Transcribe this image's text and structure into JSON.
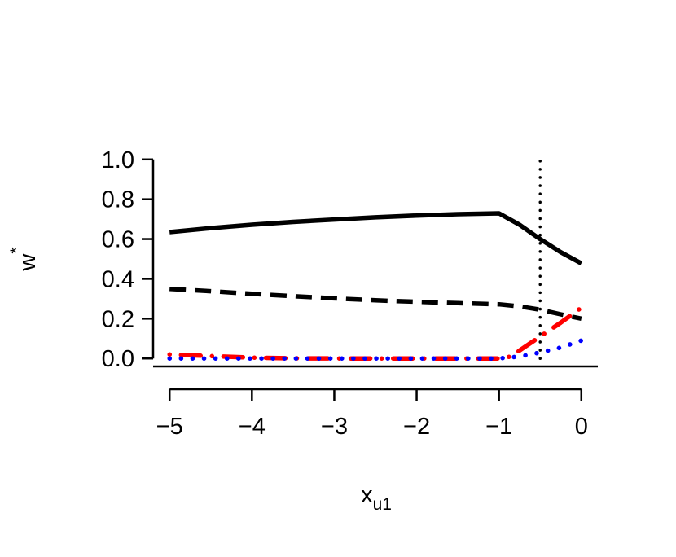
{
  "chart_data": {
    "type": "line",
    "title": "",
    "xlabel": {
      "main": "x",
      "subscript": "u1"
    },
    "ylabel": {
      "main": "w",
      "superscript": "*"
    },
    "xlim": [
      -5.2,
      0.2
    ],
    "ylim": [
      -0.04,
      1.04
    ],
    "xticks": [
      -5,
      -4,
      -3,
      -2,
      -1,
      0
    ],
    "xtick_labels": [
      "−5",
      "−4",
      "−3",
      "−2",
      "−1",
      "0"
    ],
    "yticks": [
      0.0,
      0.2,
      0.4,
      0.6,
      0.8,
      1.0
    ],
    "ytick_labels": [
      "0.0",
      "0.2",
      "0.4",
      "0.6",
      "0.8",
      "1.0"
    ],
    "grid": false,
    "legend": "none",
    "series": [
      {
        "style": "solid",
        "color": "#000000",
        "x": [
          -5,
          -4.5,
          -4,
          -3.5,
          -3,
          -2.5,
          -2,
          -1.5,
          -1,
          -0.75,
          -0.5,
          -0.25,
          0
        ],
        "y": [
          0.635,
          0.655,
          0.672,
          0.686,
          0.698,
          0.709,
          0.718,
          0.725,
          0.729,
          0.672,
          0.6,
          0.534,
          0.478
        ]
      },
      {
        "style": "dashed",
        "color": "#000000",
        "x": [
          -5,
          -4.5,
          -4,
          -3.5,
          -3,
          -2.5,
          -2,
          -1.5,
          -1,
          -0.75,
          -0.5,
          -0.25,
          0
        ],
        "y": [
          0.35,
          0.338,
          0.325,
          0.313,
          0.302,
          0.292,
          0.285,
          0.278,
          0.272,
          0.262,
          0.245,
          0.222,
          0.2
        ]
      },
      {
        "style": "dotdash",
        "color": "#ff0000",
        "x": [
          -5,
          -4.5,
          -4,
          -3.5,
          -3,
          -2.5,
          -2,
          -1.5,
          -1,
          -0.85,
          -0.75,
          -0.5,
          -0.25,
          0
        ],
        "y": [
          0.02,
          0.012,
          0.004,
          0.001,
          0.0,
          0.0,
          0.0,
          0.0,
          0.0,
          0.01,
          0.04,
          0.11,
          0.18,
          0.255
        ]
      },
      {
        "style": "dotted",
        "color": "#0000ff",
        "x": [
          -5,
          -4.5,
          -4,
          -3.5,
          -3,
          -2.5,
          -2,
          -1.5,
          -1,
          -0.75,
          -0.5,
          -0.25,
          0
        ],
        "y": [
          0.0,
          0.0,
          0.0,
          0.0,
          0.0,
          0.0,
          0.0,
          0.0,
          0.0,
          0.01,
          0.03,
          0.055,
          0.09
        ]
      }
    ],
    "annotations": [
      {
        "type": "vline",
        "x": -0.5,
        "style": "dotted",
        "color": "#000000",
        "ylim": [
          0.0,
          1.0
        ]
      }
    ]
  }
}
